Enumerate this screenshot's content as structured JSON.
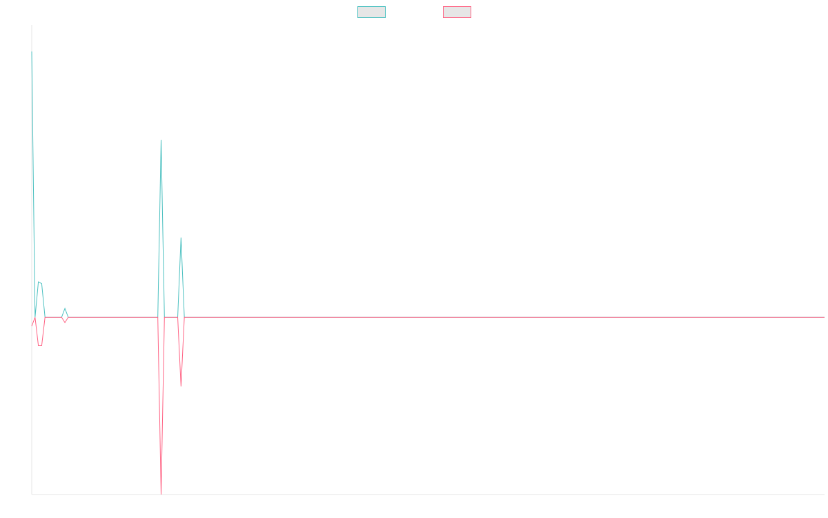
{
  "chart_data": {
    "type": "line",
    "title": "",
    "xlabel": "",
    "ylabel": "",
    "grid": false,
    "legend": "top-center",
    "xlim": [
      0,
      239
    ],
    "ylim": [
      -1,
      1.65
    ],
    "series": [
      {
        "name": "",
        "color": "#4bc0c0",
        "points": [
          [
            0,
            1.5
          ],
          [
            2,
            0.2
          ],
          [
            3,
            0.19
          ],
          [
            10,
            0.05
          ],
          [
            39,
            1.0
          ],
          [
            45,
            0.45
          ],
          [
            239,
            0
          ]
        ]
      },
      {
        "name": "",
        "color": "#ff6384",
        "points": [
          [
            0,
            -0.05
          ],
          [
            2,
            -0.16
          ],
          [
            3,
            -0.16
          ],
          [
            10,
            -0.03
          ],
          [
            39,
            -1.0
          ],
          [
            45,
            -0.39
          ],
          [
            239,
            0
          ]
        ]
      }
    ]
  }
}
